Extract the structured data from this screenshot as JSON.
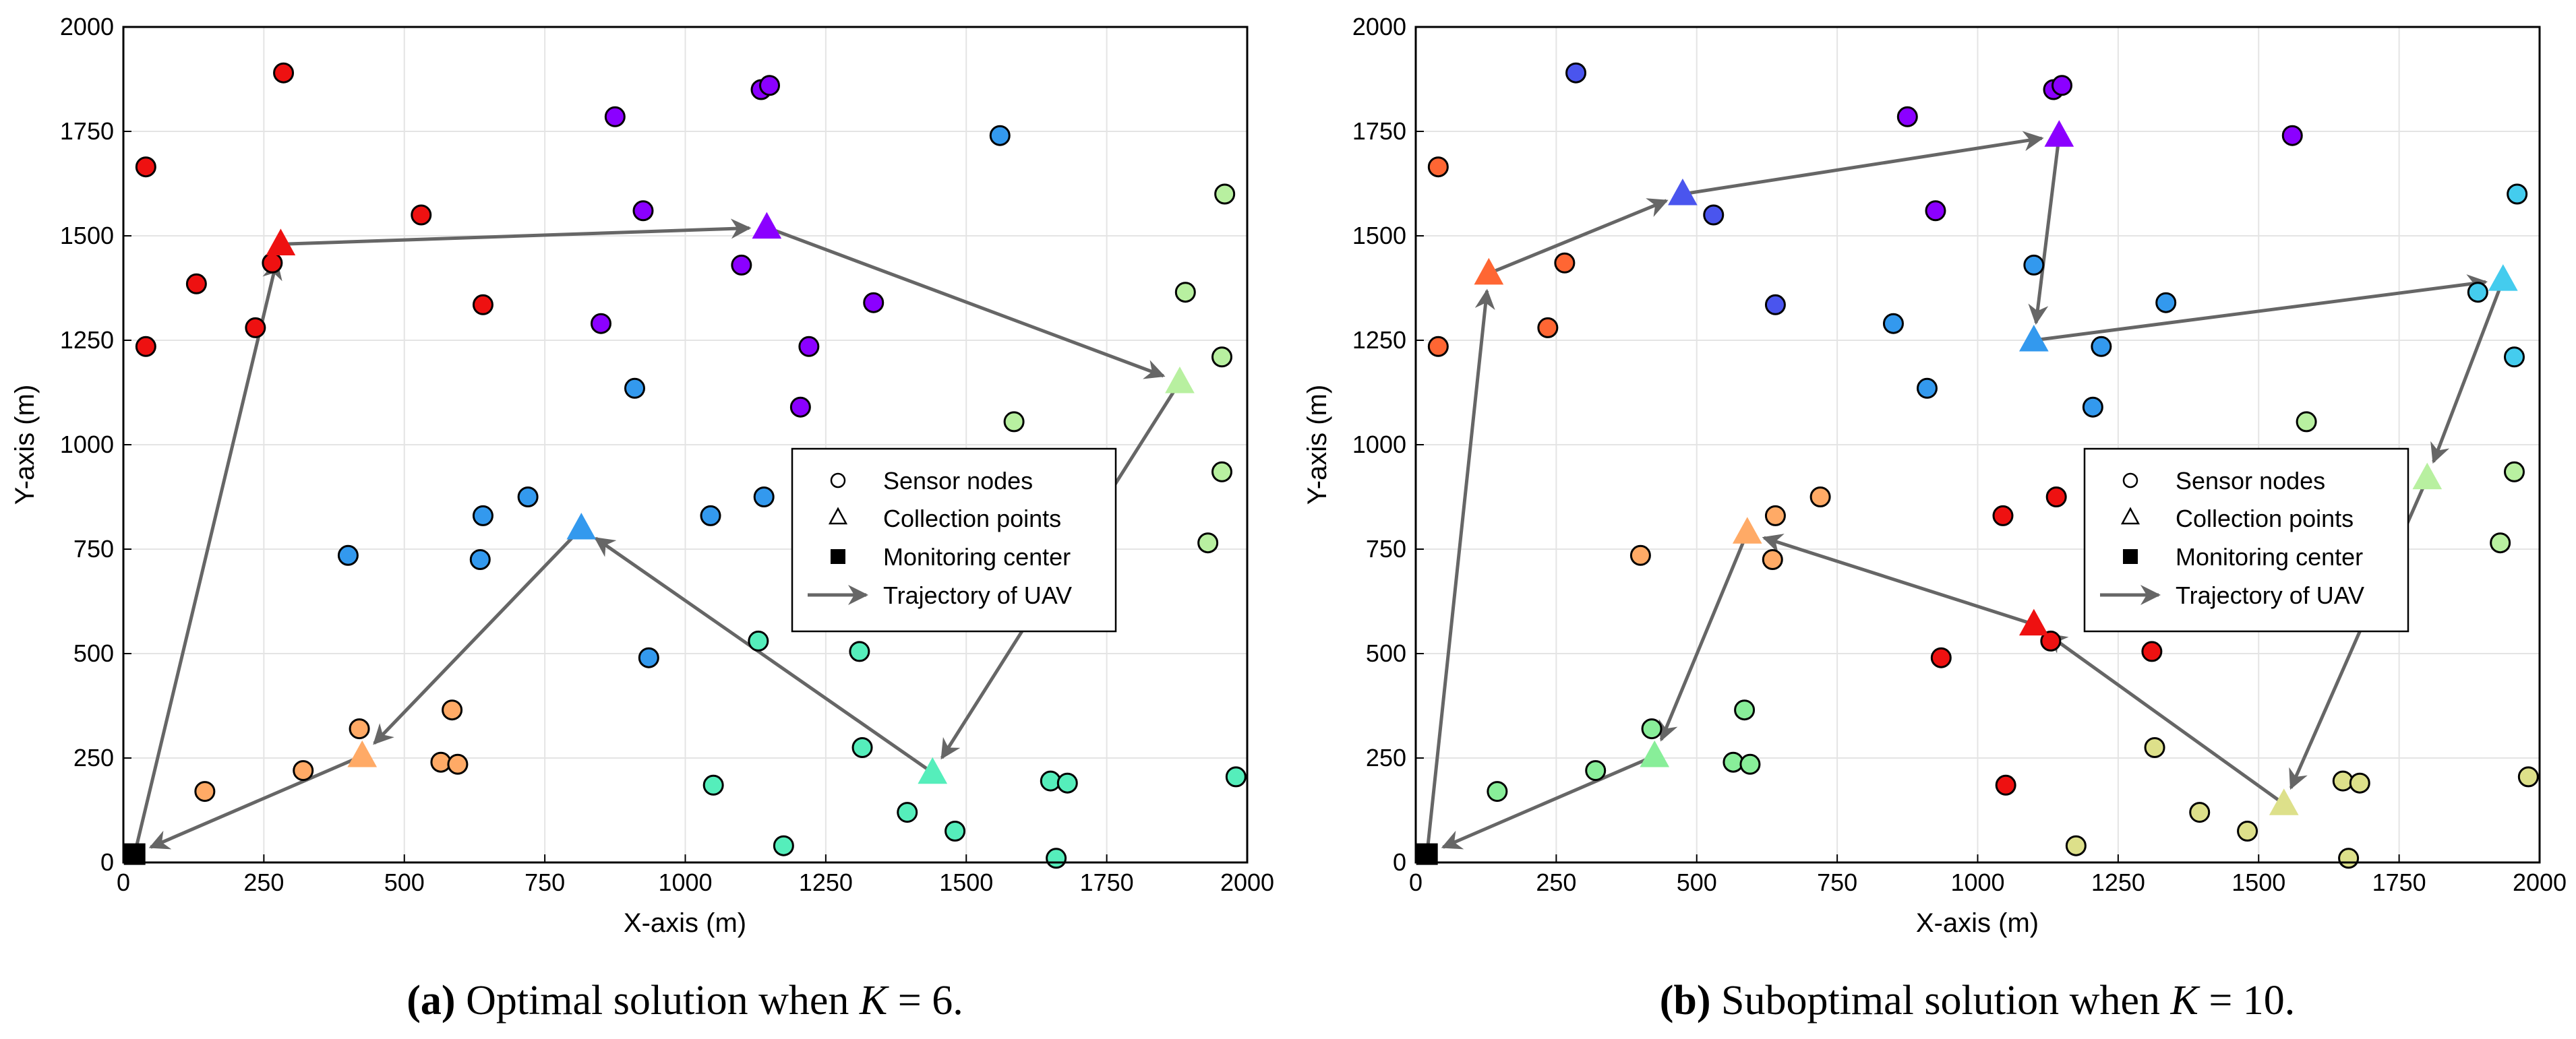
{
  "figure": {
    "captions": [
      {
        "label": "(a)",
        "text": "Optimal solution when",
        "var": "K",
        "eq": " = 6."
      },
      {
        "label": "(b)",
        "text": "Suboptimal solution when",
        "var": "K",
        "eq": " = 10."
      }
    ]
  },
  "legend": {
    "sensor": "Sensor nodes",
    "collection": "Collection points",
    "monitoring": "Monitoring center",
    "trajectory": "Trajectory of UAV"
  },
  "chart_data": [
    {
      "type": "scatter",
      "title": "Optimal solution when K = 6.",
      "xlabel": "X-axis (m)",
      "ylabel": "Y-axis (m)",
      "xlim": [
        0,
        2000
      ],
      "ylim": [
        0,
        2000
      ],
      "xticks": [
        0,
        250,
        500,
        750,
        1000,
        1250,
        1500,
        1750,
        2000
      ],
      "yticks": [
        0,
        250,
        500,
        750,
        1000,
        1250,
        1500,
        1750,
        2000
      ],
      "grid": true,
      "legend_position": "center-right",
      "monitoring_center": [
        20,
        20
      ],
      "sensor_nodes": [
        {
          "x": 285,
          "y": 1890,
          "color": "#ee1111"
        },
        {
          "x": 40,
          "y": 1665,
          "color": "#ee1111"
        },
        {
          "x": 530,
          "y": 1550,
          "color": "#ee1111"
        },
        {
          "x": 130,
          "y": 1385,
          "color": "#ee1111"
        },
        {
          "x": 265,
          "y": 1435,
          "color": "#ee1111"
        },
        {
          "x": 640,
          "y": 1335,
          "color": "#ee1111"
        },
        {
          "x": 235,
          "y": 1280,
          "color": "#ee1111"
        },
        {
          "x": 40,
          "y": 1235,
          "color": "#ee1111"
        },
        {
          "x": 1135,
          "y": 1850,
          "color": "#8b00ff"
        },
        {
          "x": 1150,
          "y": 1860,
          "color": "#8b00ff"
        },
        {
          "x": 875,
          "y": 1785,
          "color": "#8b00ff"
        },
        {
          "x": 925,
          "y": 1560,
          "color": "#8b00ff"
        },
        {
          "x": 1100,
          "y": 1430,
          "color": "#8b00ff"
        },
        {
          "x": 1335,
          "y": 1340,
          "color": "#8b00ff"
        },
        {
          "x": 850,
          "y": 1290,
          "color": "#8b00ff"
        },
        {
          "x": 1220,
          "y": 1235,
          "color": "#8b00ff"
        },
        {
          "x": 1205,
          "y": 1090,
          "color": "#8b00ff"
        },
        {
          "x": 1560,
          "y": 1740,
          "color": "#3399ee"
        },
        {
          "x": 910,
          "y": 1135,
          "color": "#3399ee"
        },
        {
          "x": 720,
          "y": 875,
          "color": "#3399ee"
        },
        {
          "x": 640,
          "y": 830,
          "color": "#3399ee"
        },
        {
          "x": 1045,
          "y": 830,
          "color": "#3399ee"
        },
        {
          "x": 1140,
          "y": 875,
          "color": "#3399ee"
        },
        {
          "x": 400,
          "y": 735,
          "color": "#3399ee"
        },
        {
          "x": 635,
          "y": 725,
          "color": "#3399ee"
        },
        {
          "x": 935,
          "y": 490,
          "color": "#3399ee"
        },
        {
          "x": 1960,
          "y": 1600,
          "color": "#b8f0a0"
        },
        {
          "x": 1890,
          "y": 1365,
          "color": "#b8f0a0"
        },
        {
          "x": 1955,
          "y": 1210,
          "color": "#b8f0a0"
        },
        {
          "x": 1585,
          "y": 1055,
          "color": "#b8f0a0"
        },
        {
          "x": 1955,
          "y": 935,
          "color": "#b8f0a0"
        },
        {
          "x": 1930,
          "y": 765,
          "color": "#b8f0a0"
        },
        {
          "x": 1130,
          "y": 530,
          "color": "#55eebb"
        },
        {
          "x": 1310,
          "y": 505,
          "color": "#55eebb"
        },
        {
          "x": 1315,
          "y": 275,
          "color": "#55eebb"
        },
        {
          "x": 1050,
          "y": 185,
          "color": "#55eebb"
        },
        {
          "x": 1650,
          "y": 195,
          "color": "#55eebb"
        },
        {
          "x": 1680,
          "y": 190,
          "color": "#55eebb"
        },
        {
          "x": 1980,
          "y": 205,
          "color": "#55eebb"
        },
        {
          "x": 1395,
          "y": 120,
          "color": "#55eebb"
        },
        {
          "x": 1480,
          "y": 75,
          "color": "#55eebb"
        },
        {
          "x": 1175,
          "y": 40,
          "color": "#55eebb"
        },
        {
          "x": 1660,
          "y": 10,
          "color": "#55eebb"
        },
        {
          "x": 420,
          "y": 320,
          "color": "#ffaa66"
        },
        {
          "x": 585,
          "y": 365,
          "color": "#ffaa66"
        },
        {
          "x": 565,
          "y": 240,
          "color": "#ffaa66"
        },
        {
          "x": 595,
          "y": 235,
          "color": "#ffaa66"
        },
        {
          "x": 320,
          "y": 220,
          "color": "#ffaa66"
        },
        {
          "x": 145,
          "y": 170,
          "color": "#ffaa66"
        }
      ],
      "collection_points": [
        {
          "x": 280,
          "y": 1480,
          "color": "#ee1111"
        },
        {
          "x": 1145,
          "y": 1520,
          "color": "#8b00ff"
        },
        {
          "x": 1880,
          "y": 1150,
          "color": "#b8f0a0"
        },
        {
          "x": 815,
          "y": 800,
          "color": "#3399ee"
        },
        {
          "x": 1440,
          "y": 215,
          "color": "#55eebb"
        },
        {
          "x": 425,
          "y": 255,
          "color": "#ffaa66"
        }
      ],
      "trajectory": [
        [
          20,
          20
        ],
        [
          280,
          1480
        ],
        [
          1145,
          1520
        ],
        [
          1880,
          1150
        ],
        [
          1440,
          215
        ],
        [
          815,
          800
        ],
        [
          425,
          255
        ],
        [
          20,
          20
        ]
      ]
    },
    {
      "type": "scatter",
      "title": "Suboptimal solution when K = 10.",
      "xlabel": "X-axis (m)",
      "ylabel": "Y-axis (m)",
      "xlim": [
        0,
        2000
      ],
      "ylim": [
        0,
        2000
      ],
      "xticks": [
        0,
        250,
        500,
        750,
        1000,
        1250,
        1500,
        1750,
        2000
      ],
      "yticks": [
        0,
        250,
        500,
        750,
        1000,
        1250,
        1500,
        1750,
        2000
      ],
      "grid": true,
      "legend_position": "center-right",
      "monitoring_center": [
        20,
        20
      ],
      "sensor_nodes": [
        {
          "x": 285,
          "y": 1890,
          "color": "#4a55ee"
        },
        {
          "x": 530,
          "y": 1550,
          "color": "#4a55ee"
        },
        {
          "x": 640,
          "y": 1335,
          "color": "#4a55ee"
        },
        {
          "x": 1135,
          "y": 1850,
          "color": "#8b00ff"
        },
        {
          "x": 1150,
          "y": 1860,
          "color": "#8b00ff"
        },
        {
          "x": 875,
          "y": 1785,
          "color": "#8b00ff"
        },
        {
          "x": 925,
          "y": 1560,
          "color": "#8b00ff"
        },
        {
          "x": 1560,
          "y": 1740,
          "color": "#8b00ff"
        },
        {
          "x": 40,
          "y": 1665,
          "color": "#ff6633"
        },
        {
          "x": 265,
          "y": 1435,
          "color": "#ff6633"
        },
        {
          "x": 235,
          "y": 1280,
          "color": "#ff6633"
        },
        {
          "x": 40,
          "y": 1235,
          "color": "#ff6633"
        },
        {
          "x": 1100,
          "y": 1430,
          "color": "#3399ee"
        },
        {
          "x": 850,
          "y": 1290,
          "color": "#3399ee"
        },
        {
          "x": 1335,
          "y": 1340,
          "color": "#3399ee"
        },
        {
          "x": 1220,
          "y": 1235,
          "color": "#3399ee"
        },
        {
          "x": 910,
          "y": 1135,
          "color": "#3399ee"
        },
        {
          "x": 1205,
          "y": 1090,
          "color": "#3399ee"
        },
        {
          "x": 1960,
          "y": 1600,
          "color": "#44ccee"
        },
        {
          "x": 1890,
          "y": 1365,
          "color": "#44ccee"
        },
        {
          "x": 1955,
          "y": 1210,
          "color": "#44ccee"
        },
        {
          "x": 1585,
          "y": 1055,
          "color": "#b8f0a0"
        },
        {
          "x": 1955,
          "y": 935,
          "color": "#b8f0a0"
        },
        {
          "x": 1930,
          "y": 765,
          "color": "#b8f0a0"
        },
        {
          "x": 720,
          "y": 875,
          "color": "#ffaa66"
        },
        {
          "x": 640,
          "y": 830,
          "color": "#ffaa66"
        },
        {
          "x": 400,
          "y": 735,
          "color": "#ffaa66"
        },
        {
          "x": 635,
          "y": 725,
          "color": "#ffaa66"
        },
        {
          "x": 1045,
          "y": 830,
          "color": "#ee1111"
        },
        {
          "x": 1140,
          "y": 875,
          "color": "#ee1111"
        },
        {
          "x": 935,
          "y": 490,
          "color": "#ee1111"
        },
        {
          "x": 1130,
          "y": 530,
          "color": "#ee1111"
        },
        {
          "x": 1310,
          "y": 505,
          "color": "#ee1111"
        },
        {
          "x": 1050,
          "y": 185,
          "color": "#ee1111"
        },
        {
          "x": 420,
          "y": 320,
          "color": "#88ee99"
        },
        {
          "x": 585,
          "y": 365,
          "color": "#88ee99"
        },
        {
          "x": 565,
          "y": 240,
          "color": "#88ee99"
        },
        {
          "x": 595,
          "y": 235,
          "color": "#88ee99"
        },
        {
          "x": 320,
          "y": 220,
          "color": "#88ee99"
        },
        {
          "x": 145,
          "y": 170,
          "color": "#88ee99"
        },
        {
          "x": 1315,
          "y": 275,
          "color": "#dde08a"
        },
        {
          "x": 1650,
          "y": 195,
          "color": "#dde08a"
        },
        {
          "x": 1680,
          "y": 190,
          "color": "#dde08a"
        },
        {
          "x": 1980,
          "y": 205,
          "color": "#dde08a"
        },
        {
          "x": 1395,
          "y": 120,
          "color": "#dde08a"
        },
        {
          "x": 1480,
          "y": 75,
          "color": "#dde08a"
        },
        {
          "x": 1175,
          "y": 40,
          "color": "#dde08a"
        },
        {
          "x": 1660,
          "y": 10,
          "color": "#dde08a"
        }
      ],
      "collection_points": [
        {
          "x": 130,
          "y": 1410,
          "color": "#ff6633"
        },
        {
          "x": 475,
          "y": 1600,
          "color": "#4a55ee"
        },
        {
          "x": 1145,
          "y": 1740,
          "color": "#8b00ff"
        },
        {
          "x": 1100,
          "y": 1250,
          "color": "#3399ee"
        },
        {
          "x": 1935,
          "y": 1395,
          "color": "#44ccee"
        },
        {
          "x": 1800,
          "y": 920,
          "color": "#b8f0a0"
        },
        {
          "x": 1545,
          "y": 140,
          "color": "#dde08a"
        },
        {
          "x": 1100,
          "y": 570,
          "color": "#ee1111"
        },
        {
          "x": 590,
          "y": 790,
          "color": "#ffaa66"
        },
        {
          "x": 425,
          "y": 255,
          "color": "#88ee99"
        }
      ],
      "trajectory": [
        [
          20,
          20
        ],
        [
          130,
          1410
        ],
        [
          475,
          1600
        ],
        [
          1145,
          1740
        ],
        [
          1100,
          1250
        ],
        [
          1935,
          1395
        ],
        [
          1800,
          920
        ],
        [
          1545,
          140
        ],
        [
          1100,
          570
        ],
        [
          590,
          790
        ],
        [
          425,
          255
        ],
        [
          20,
          20
        ]
      ]
    }
  ]
}
